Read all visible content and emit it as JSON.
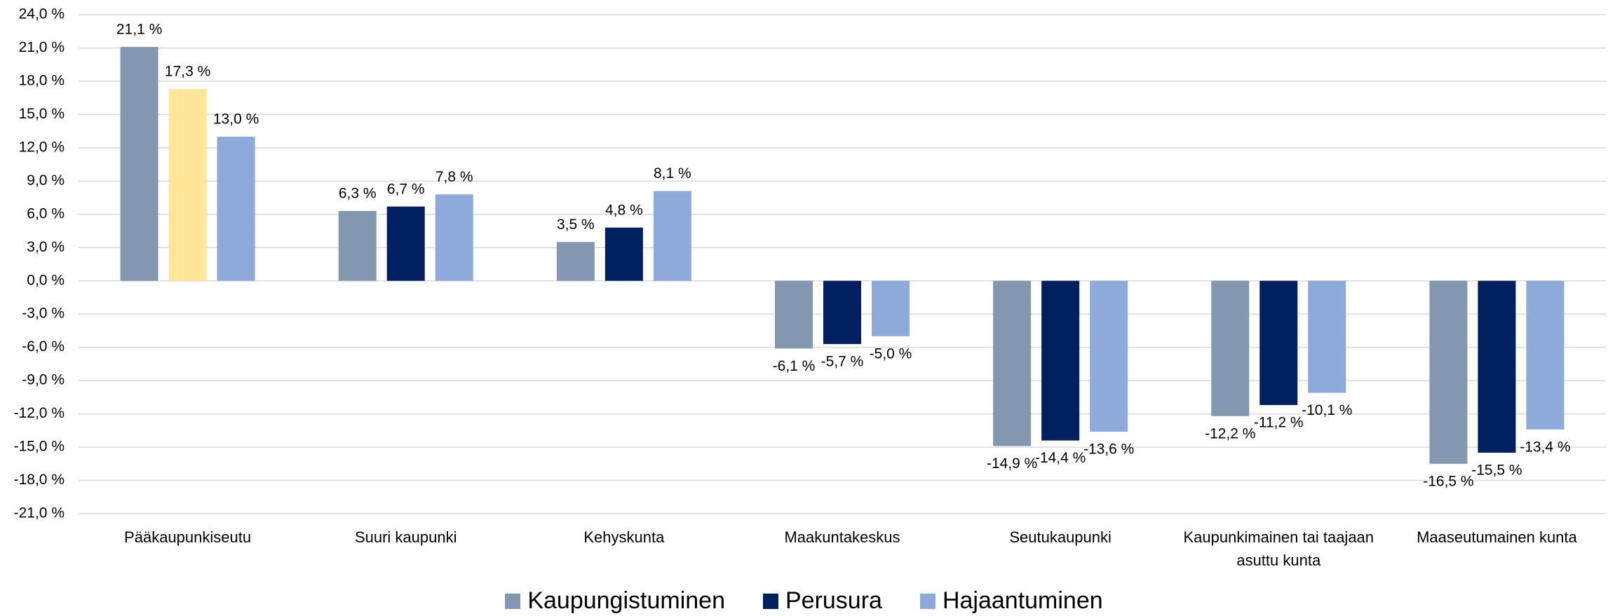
{
  "chart_data": {
    "type": "bar",
    "categories": [
      "Pääkaupunkiseutu",
      "Suuri kaupunki",
      "Kehyskunta",
      "Maakuntakeskus",
      "Seutukaupunki",
      "Kaupunkimainen tai taajaan asuttu kunta",
      "Maaseutumainen kunta"
    ],
    "series": [
      {
        "name": "Kaupungistuminen",
        "color": "#8497b0",
        "values": [
          21.1,
          6.3,
          3.5,
          -6.1,
          -14.9,
          -12.2,
          -16.5
        ],
        "value_labels": [
          "21,1 %",
          "6,3 %",
          "3,5 %",
          "-6,1 %",
          "-14,9 %",
          "-12,2 %",
          "-16,5 %"
        ]
      },
      {
        "name": "Perusura",
        "color": "#002060",
        "colors": [
          "#ffe699",
          "#002060",
          "#002060",
          "#002060",
          "#002060",
          "#002060",
          "#002060"
        ],
        "values": [
          17.3,
          6.7,
          4.8,
          -5.7,
          -14.4,
          -11.2,
          -15.5
        ],
        "value_labels": [
          "17,3 %",
          "6,7 %",
          "4,8 %",
          "-5,7 %",
          "-14,4 %",
          "-11,2 %",
          "-15,5 %"
        ]
      },
      {
        "name": "Hajaantuminen",
        "color": "#8eaadb",
        "values": [
          13.0,
          7.8,
          8.1,
          -5.0,
          -13.6,
          -10.1,
          -13.4
        ],
        "value_labels": [
          "13,0 %",
          "7,8 %",
          "8,1 %",
          "-5,0 %",
          "-13,6 %",
          "-10,1 %",
          "-13,4 %"
        ]
      }
    ],
    "ylim": [
      -21,
      24
    ],
    "yticks": [
      {
        "value": -21,
        "label": "-21,0 %"
      },
      {
        "value": -18,
        "label": "-18,0 %"
      },
      {
        "value": -15,
        "label": "-15,0 %"
      },
      {
        "value": -12,
        "label": "-12,0 %"
      },
      {
        "value": -9,
        "label": "-9,0 %"
      },
      {
        "value": -6,
        "label": "-6,0 %"
      },
      {
        "value": -3,
        "label": "-3,0 %"
      },
      {
        "value": 0,
        "label": "0,0 %"
      },
      {
        "value": 3,
        "label": "3,0 %"
      },
      {
        "value": 6,
        "label": "6,0 %"
      },
      {
        "value": 9,
        "label": "9,0 %"
      },
      {
        "value": 12,
        "label": "12,0 %"
      },
      {
        "value": 15,
        "label": "15,0 %"
      },
      {
        "value": 18,
        "label": "18,0 %"
      },
      {
        "value": 21,
        "label": "21,0 %"
      },
      {
        "value": 24,
        "label": "24,0 %"
      }
    ],
    "grid": true,
    "legend": "bottom"
  }
}
